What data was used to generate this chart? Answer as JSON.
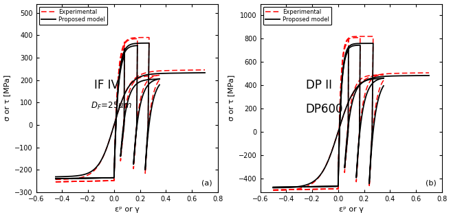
{
  "panel_a": {
    "title_label": "IF IV",
    "subtitle_label": "D_F=25μm",
    "panel_letter": "(a)",
    "xlim": [
      -0.6,
      0.8
    ],
    "ylim": [
      -300,
      540
    ],
    "yticks": [
      -300,
      -200,
      -100,
      0,
      100,
      200,
      300,
      400,
      500
    ],
    "xticks": [
      -0.6,
      -0.4,
      -0.2,
      0,
      0.2,
      0.4,
      0.6,
      0.8
    ],
    "xlabel": "εᵖ or γ",
    "ylabel": "σ or τ [MPa]"
  },
  "panel_b": {
    "title_label": "DP II\nDP600",
    "panel_letter": "(b)",
    "xlim": [
      -0.6,
      0.8
    ],
    "ylim": [
      -520,
      1100
    ],
    "yticks": [
      -400,
      -200,
      0,
      200,
      400,
      600,
      800,
      1000
    ],
    "xticks": [
      -0.6,
      -0.4,
      -0.2,
      0,
      0.2,
      0.4,
      0.6,
      0.8
    ],
    "xlabel": "εᵖ or γ",
    "ylabel": "σ or τ [MPa]"
  },
  "legend": {
    "experimental_label": "Experimental",
    "model_label": "Proposed model",
    "exp_color": "#ff0000",
    "model_color": "#000000"
  },
  "background_color": "#ffffff",
  "line_color": "#000000",
  "exp_color": "#ff0000"
}
